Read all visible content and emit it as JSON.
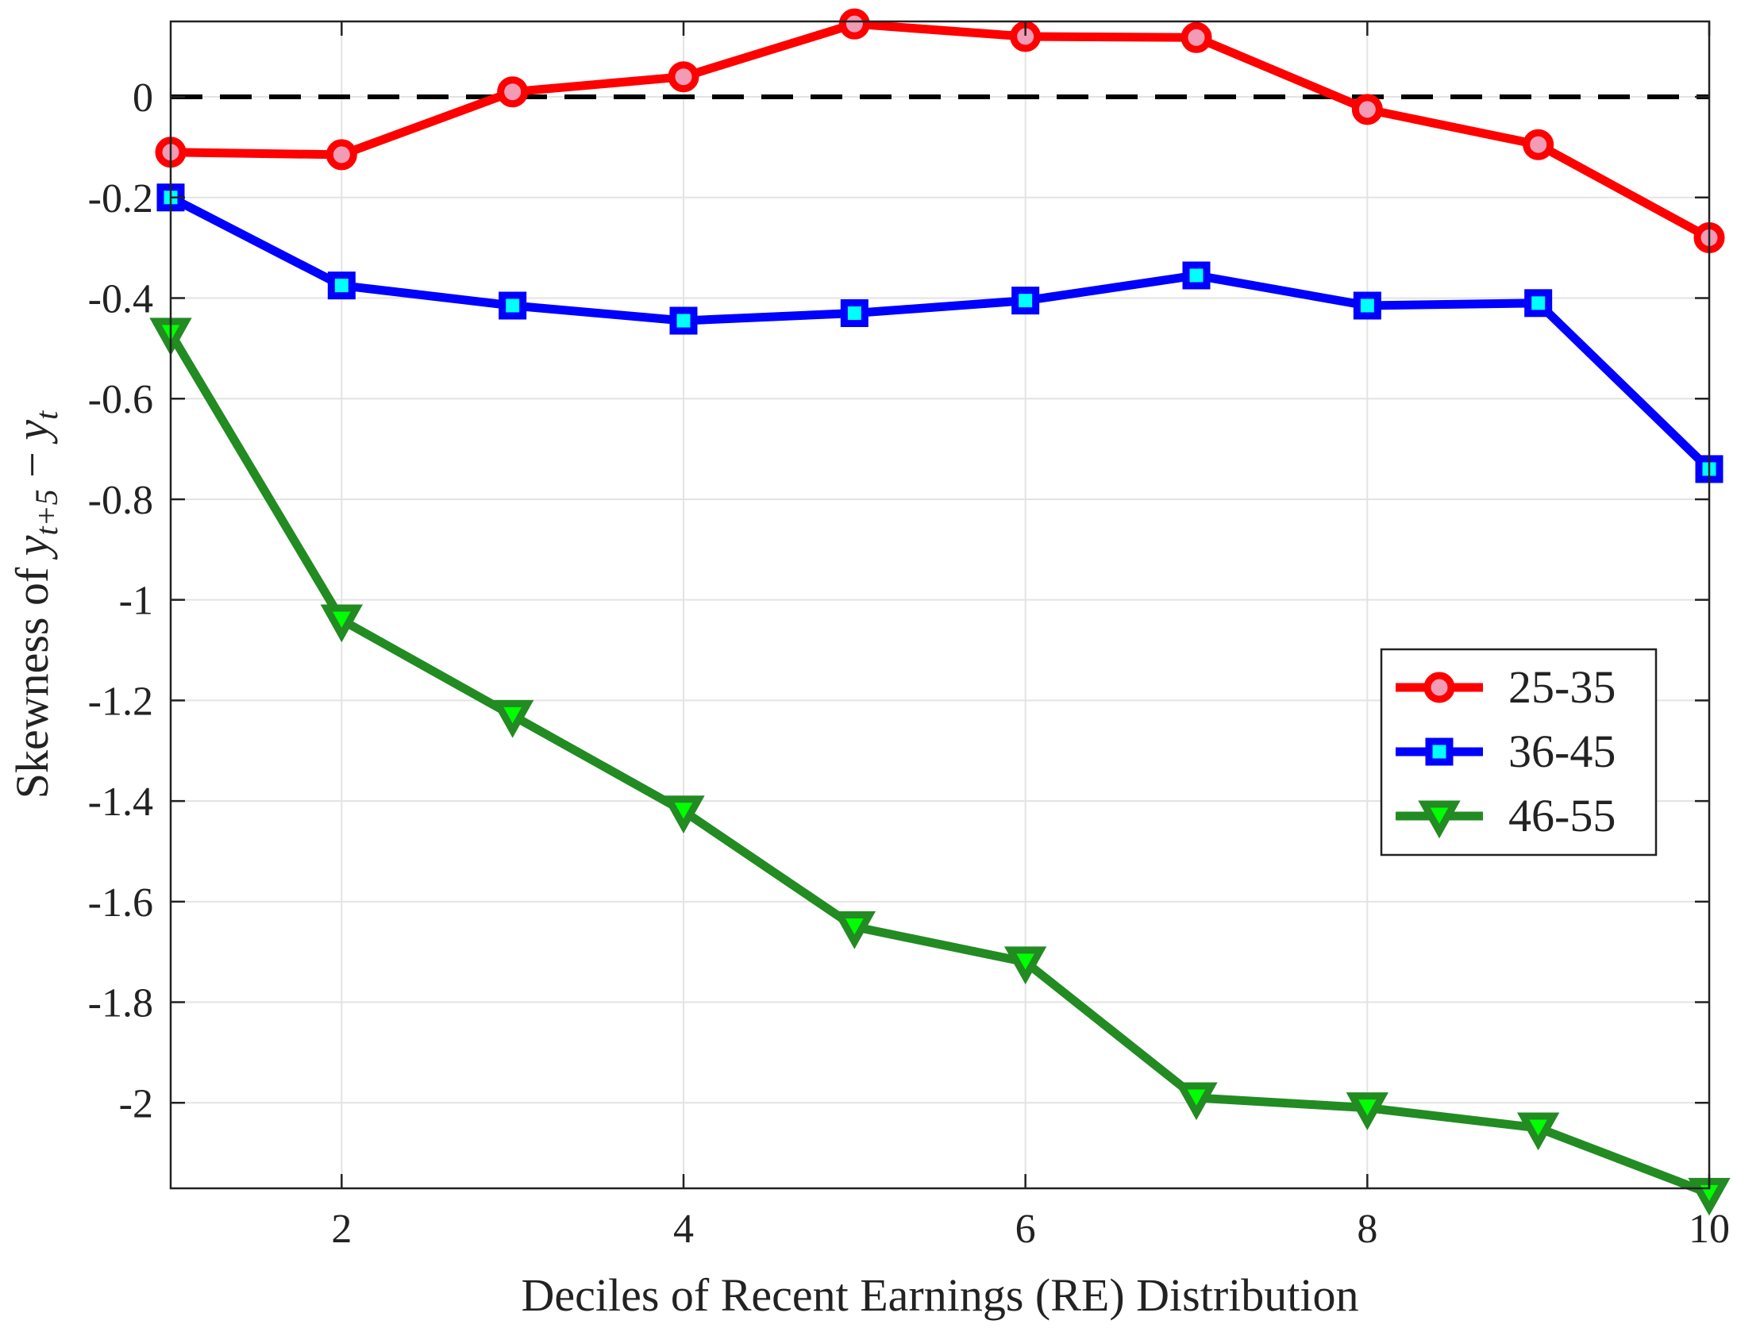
{
  "chart_data": {
    "type": "line",
    "x": [
      1,
      2,
      3,
      4,
      5,
      6,
      7,
      8,
      9,
      10
    ],
    "series": [
      {
        "name": "25-35",
        "color": "#ff0000",
        "marker_fill": "#f19bb5",
        "marker": "circle",
        "values": [
          -0.11,
          -0.115,
          0.01,
          0.04,
          0.145,
          0.12,
          0.118,
          -0.025,
          -0.095,
          -0.28
        ]
      },
      {
        "name": "36-45",
        "color": "#0000ff",
        "marker_fill": "#00ffff",
        "marker": "square",
        "values": [
          -0.2,
          -0.375,
          -0.415,
          -0.445,
          -0.43,
          -0.405,
          -0.355,
          -0.415,
          -0.41,
          -0.74
        ]
      },
      {
        "name": "46-55",
        "color": "#228b22",
        "marker_fill": "#00ff00",
        "marker": "triangle-down",
        "values": [
          -0.47,
          -1.04,
          -1.23,
          -1.42,
          -1.65,
          -1.72,
          -1.99,
          -2.01,
          -2.05,
          -2.18
        ]
      }
    ],
    "xlim": [
      1,
      10
    ],
    "ylim": [
      -2.17,
      0.15
    ],
    "xticks": [
      2,
      4,
      6,
      8,
      10
    ],
    "xtick_labels": [
      "2",
      "4",
      "6",
      "8",
      "10"
    ],
    "yticks": [
      0,
      -0.2,
      -0.4,
      -0.6,
      -0.8,
      -1,
      -1.2,
      -1.4,
      -1.6,
      -1.8,
      -2
    ],
    "ytick_labels": [
      "0",
      "-0.2",
      "-0.4",
      "-0.6",
      "-0.8",
      "-1",
      "-1.2",
      "-1.4",
      "-1.6",
      "-1.8",
      "-2"
    ],
    "reference_line": {
      "y": 0,
      "style": "dashed",
      "color": "#000000"
    },
    "xlabel": "Deciles of Recent Earnings (RE) Distribution",
    "ylabel": {
      "prefix": "Skewness of ",
      "y1": "y",
      "sub1": "t+5",
      "minus": " − ",
      "y2": "y",
      "sub2": "t"
    },
    "grid": true,
    "legend_position": "right-middle"
  }
}
